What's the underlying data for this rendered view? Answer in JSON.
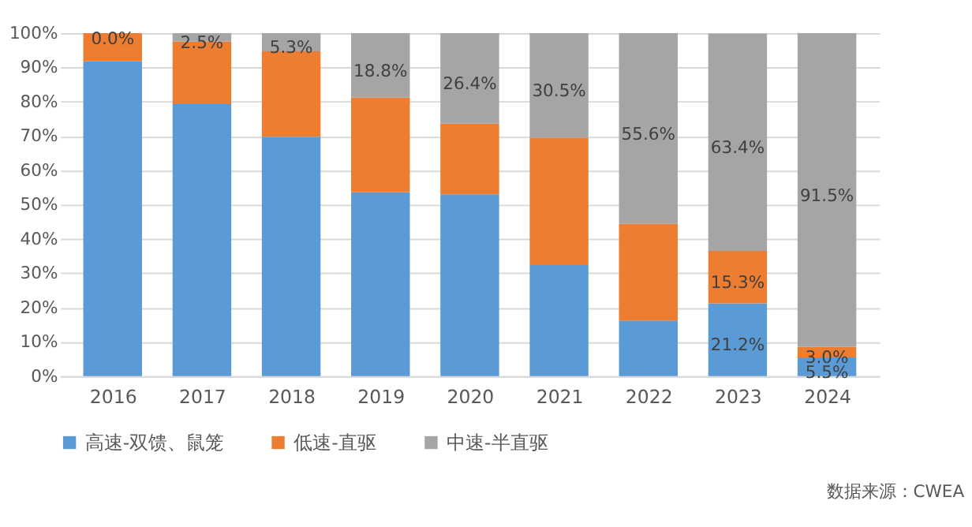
{
  "chart_data": {
    "type": "bar",
    "stacked": true,
    "categories": [
      "2016",
      "2017",
      "2018",
      "2019",
      "2020",
      "2021",
      "2022",
      "2023",
      "2024"
    ],
    "series": [
      {
        "name": "高速-双馈、鼠笼",
        "color": "#5b9bd5",
        "values": [
          91.8,
          79.3,
          69.8,
          53.6,
          53.0,
          32.4,
          16.2,
          21.2,
          5.5
        ],
        "value_labels": [
          null,
          null,
          null,
          null,
          null,
          null,
          null,
          "21.2%",
          "5.5%"
        ]
      },
      {
        "name": "低速-直驱",
        "color": "#ed7d31",
        "values": [
          8.2,
          18.2,
          24.9,
          27.6,
          20.6,
          37.1,
          28.2,
          15.3,
          3.0
        ],
        "value_labels": [
          null,
          null,
          null,
          null,
          null,
          null,
          null,
          "15.3%",
          "3.0%"
        ]
      },
      {
        "name": "中速-半直驱",
        "color": "#a5a5a5",
        "values": [
          0.0,
          2.5,
          5.3,
          18.8,
          26.4,
          30.5,
          55.6,
          63.4,
          91.5
        ],
        "value_labels": [
          "0.0%",
          "2.5%",
          "5.3%",
          "18.8%",
          "26.4%",
          "30.5%",
          "55.6%",
          "63.4%",
          "91.5%"
        ]
      }
    ],
    "ylim": [
      0,
      100
    ],
    "yticks": [
      {
        "value": 0,
        "label": "0%"
      },
      {
        "value": 10,
        "label": "10%"
      },
      {
        "value": 20,
        "label": "20%"
      },
      {
        "value": 30,
        "label": "30%"
      },
      {
        "value": 40,
        "label": "40%"
      },
      {
        "value": 50,
        "label": "50%"
      },
      {
        "value": 60,
        "label": "60%"
      },
      {
        "value": 70,
        "label": "70%"
      },
      {
        "value": 80,
        "label": "80%"
      },
      {
        "value": 90,
        "label": "90%"
      },
      {
        "value": 100,
        "label": "100%"
      }
    ],
    "grid": "y",
    "legend": "bottom",
    "annotations": [
      "数据来源：CWEA"
    ]
  }
}
